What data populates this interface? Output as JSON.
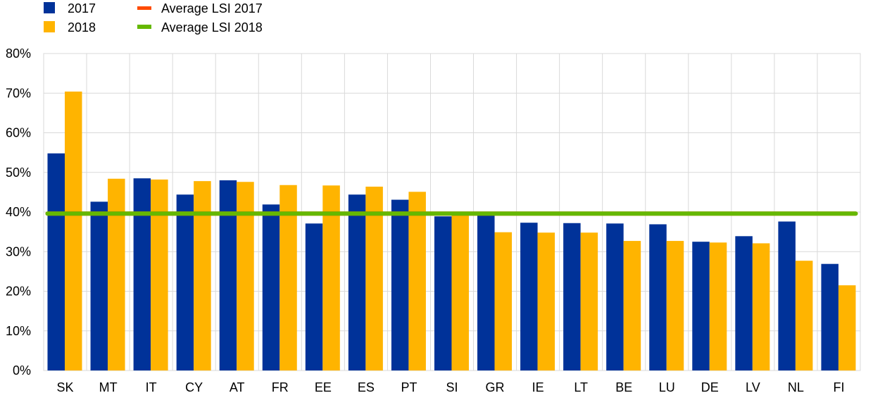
{
  "chart_data": {
    "type": "bar",
    "title": "",
    "xlabel": "",
    "ylabel": "",
    "ylim": [
      0,
      80
    ],
    "y_ticks": [
      0,
      10,
      20,
      30,
      40,
      50,
      60,
      70,
      80
    ],
    "y_tick_labels": [
      "0%",
      "10%",
      "20%",
      "30%",
      "40%",
      "50%",
      "60%",
      "70%",
      "80%"
    ],
    "grid": true,
    "legend_position": "top-left",
    "categories": [
      "SK",
      "MT",
      "IT",
      "CY",
      "AT",
      "FR",
      "EE",
      "ES",
      "PT",
      "SI",
      "GR",
      "IE",
      "LT",
      "BE",
      "LU",
      "DE",
      "LV",
      "NL",
      "FI"
    ],
    "series": [
      {
        "name": "2017",
        "color": "#003299",
        "values": [
          54.8,
          42.6,
          48.5,
          44.4,
          48.0,
          41.9,
          37.1,
          44.4,
          43.1,
          38.9,
          39.5,
          37.3,
          37.2,
          37.1,
          36.9,
          32.5,
          33.9,
          37.6,
          26.9
        ]
      },
      {
        "name": "2018",
        "color": "#FFB400",
        "values": [
          70.4,
          48.4,
          48.2,
          47.8,
          47.6,
          46.8,
          46.7,
          46.4,
          45.1,
          39.8,
          34.9,
          34.8,
          34.8,
          32.7,
          32.7,
          32.3,
          32.1,
          27.7,
          21.5
        ]
      }
    ],
    "reference_lines": [
      {
        "name": "Average LSI 2017",
        "color": "#FF4B00",
        "value": 39.6
      },
      {
        "name": "Average LSI 2018",
        "color": "#65B800",
        "value": 39.6
      }
    ]
  }
}
